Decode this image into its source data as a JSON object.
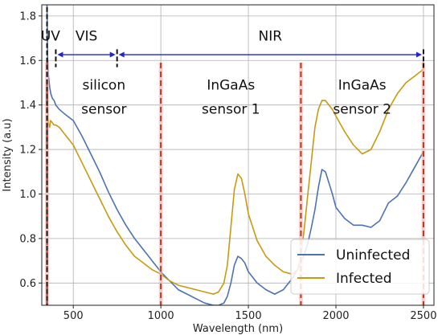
{
  "chart_data": {
    "type": "line",
    "xlabel": "Wavelength (nm)",
    "ylabel": "Intensity (a.u)",
    "xlim": [
      320,
      2560
    ],
    "ylim": [
      0.5,
      1.85
    ],
    "x_ticks": [
      500,
      1000,
      1500,
      2000,
      2500
    ],
    "y_ticks": [
      0.6,
      0.8,
      1.0,
      1.2,
      1.4,
      1.6,
      1.8
    ],
    "y_tick_labels": [
      "0.6",
      "0.8",
      "1.0",
      "1.2",
      "1.4",
      "1.6",
      "1.8"
    ],
    "grid": true,
    "legend_position": "lower-right",
    "series": [
      {
        "name": "Uninfected",
        "color": "#4c72b0",
        "x": [
          350,
          353,
          356,
          360,
          365,
          372,
          380,
          390,
          400,
          420,
          450,
          500,
          550,
          600,
          650,
          700,
          750,
          800,
          850,
          900,
          950,
          1000,
          1050,
          1100,
          1150,
          1200,
          1250,
          1300,
          1330,
          1360,
          1380,
          1400,
          1420,
          1440,
          1460,
          1480,
          1500,
          1550,
          1600,
          1650,
          1700,
          1750,
          1780,
          1800,
          1820,
          1840,
          1860,
          1880,
          1900,
          1920,
          1940,
          1960,
          1980,
          2000,
          2050,
          2100,
          2150,
          2200,
          2250,
          2300,
          2350,
          2400,
          2450,
          2500
        ],
        "y": [
          1.85,
          1.62,
          1.55,
          1.52,
          1.48,
          1.45,
          1.43,
          1.42,
          1.4,
          1.38,
          1.36,
          1.33,
          1.26,
          1.18,
          1.1,
          1.01,
          0.93,
          0.86,
          0.8,
          0.75,
          0.7,
          0.65,
          0.61,
          0.57,
          0.55,
          0.53,
          0.51,
          0.5,
          0.5,
          0.51,
          0.54,
          0.6,
          0.68,
          0.72,
          0.71,
          0.69,
          0.65,
          0.6,
          0.57,
          0.55,
          0.57,
          0.62,
          0.66,
          0.69,
          0.73,
          0.78,
          0.85,
          0.93,
          1.03,
          1.11,
          1.1,
          1.05,
          1.0,
          0.94,
          0.89,
          0.86,
          0.86,
          0.85,
          0.88,
          0.96,
          0.99,
          1.05,
          1.12,
          1.19
        ]
      },
      {
        "name": "Infected",
        "color": "#c79a0f",
        "x": [
          350,
          355,
          360,
          365,
          370,
          380,
          390,
          400,
          420,
          450,
          500,
          550,
          600,
          650,
          700,
          750,
          800,
          850,
          900,
          950,
          1000,
          1050,
          1100,
          1150,
          1200,
          1250,
          1300,
          1330,
          1360,
          1380,
          1400,
          1420,
          1440,
          1460,
          1480,
          1500,
          1550,
          1600,
          1650,
          1700,
          1750,
          1780,
          1800,
          1820,
          1840,
          1860,
          1880,
          1900,
          1920,
          1940,
          1960,
          1980,
          2000,
          2050,
          2100,
          2150,
          2200,
          2250,
          2300,
          2350,
          2400,
          2450,
          2500
        ],
        "y": [
          1.5,
          1.34,
          1.31,
          1.3,
          1.33,
          1.32,
          1.31,
          1.31,
          1.3,
          1.27,
          1.22,
          1.14,
          1.06,
          0.98,
          0.9,
          0.83,
          0.77,
          0.72,
          0.69,
          0.66,
          0.64,
          0.61,
          0.59,
          0.58,
          0.57,
          0.56,
          0.55,
          0.56,
          0.6,
          0.68,
          0.85,
          1.02,
          1.09,
          1.07,
          1.0,
          0.91,
          0.79,
          0.72,
          0.68,
          0.65,
          0.64,
          0.66,
          0.72,
          0.85,
          1.0,
          1.15,
          1.3,
          1.38,
          1.42,
          1.42,
          1.4,
          1.38,
          1.35,
          1.28,
          1.22,
          1.18,
          1.2,
          1.28,
          1.38,
          1.45,
          1.5,
          1.53,
          1.56
        ]
      }
    ],
    "red_dashed_lines_x": [
      350,
      1000,
      1800,
      2500
    ],
    "black_dashed_markers_x": [
      350,
      400,
      750,
      2500
    ],
    "bands": [
      {
        "label": "UV"
      },
      {
        "label": "VIS",
        "from": 400,
        "to": 750
      },
      {
        "label": "NIR",
        "from": 750,
        "to": 2500
      }
    ],
    "sensor_labels": [
      {
        "line1": "silicon",
        "line2": "sensor",
        "x": 675
      },
      {
        "line1": "InGaAs",
        "line2": "sensor 1",
        "x": 1400
      },
      {
        "line1": "InGaAs",
        "line2": "sensor 2",
        "x": 2150
      }
    ]
  }
}
